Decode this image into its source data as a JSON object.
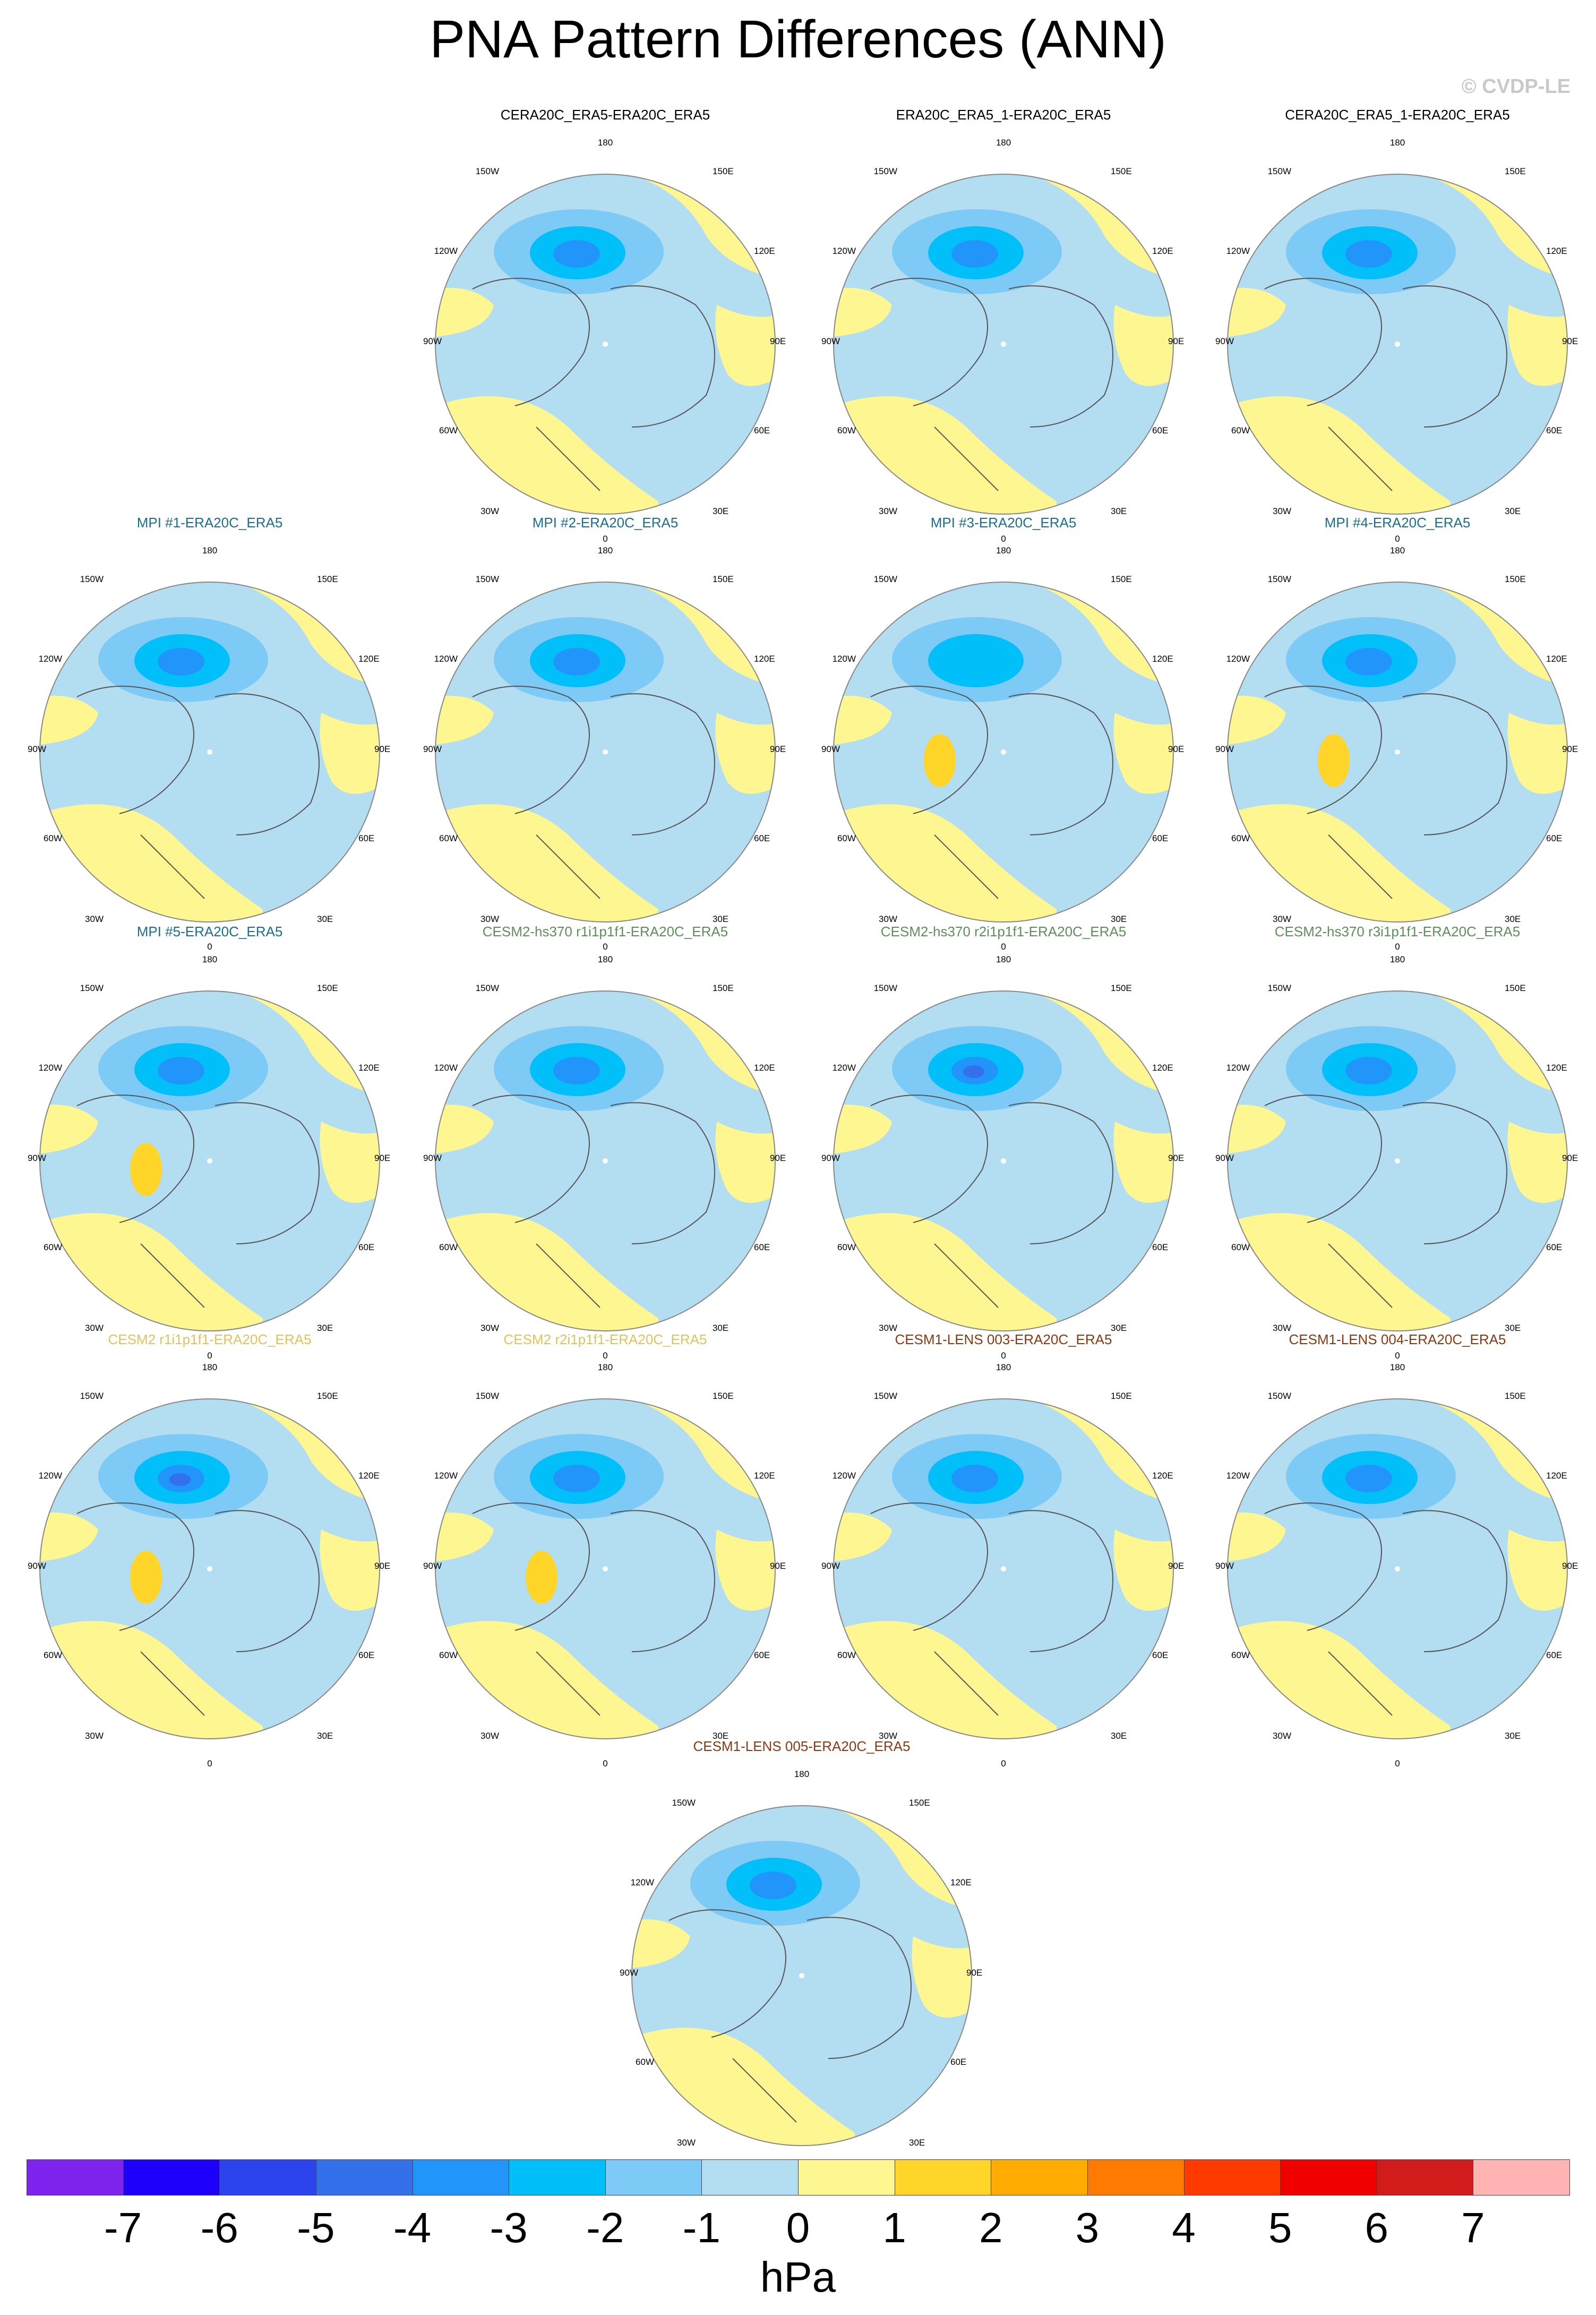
{
  "title": "PNA Pattern Differences (ANN)",
  "credit": "© CVDP-LE",
  "palette": {
    "neg7": "#7f24ee",
    "neg6": "#1c00fb",
    "neg5": "#2c44ee",
    "neg4": "#3370ea",
    "neg3": "#2295fb",
    "neg2": "#00bff9",
    "neg1": "#7ccaf5",
    "zero_neg": "#b3ddf1",
    "zero_pos": "#fef791",
    "pos1": "#ffd52a",
    "pos2": "#ffab00",
    "pos3": "#ff7a00",
    "pos4": "#ff3a00",
    "pos5": "#f00000",
    "pos6": "#d21c1c",
    "pos7": "#ffb3b3",
    "land_outline": "#555555"
  },
  "map_labels": {
    "lat180": "180",
    "lon150w": "150W",
    "lon150e": "150E",
    "lon120w": "120W",
    "lon120e": "120E",
    "lon90w": "90W",
    "lon90e": "90E",
    "lon60w": "60W",
    "lon60e": "60E",
    "lon30w": "30W",
    "lon30e": "30E",
    "lat0": "0"
  },
  "panels": [
    {
      "title": "CERA20C_ERA5-ERA20C_ERA5",
      "title_color": "#000000",
      "min_level": -3,
      "has_orange": false
    },
    {
      "title": "ERA20C_ERA5_1-ERA20C_ERA5",
      "title_color": "#000000",
      "min_level": -3,
      "has_orange": false
    },
    {
      "title": "CERA20C_ERA5_1-ERA20C_ERA5",
      "title_color": "#000000",
      "min_level": -3,
      "has_orange": false
    },
    {
      "title": "MPI #1-ERA20C_ERA5",
      "title_color": "#1b6f8a",
      "min_level": -3,
      "has_orange": false
    },
    {
      "title": "MPI #2-ERA20C_ERA5",
      "title_color": "#1b6f8a",
      "min_level": -3,
      "has_orange": false
    },
    {
      "title": "MPI #3-ERA20C_ERA5",
      "title_color": "#1b6f8a",
      "min_level": -2,
      "has_orange": true
    },
    {
      "title": "MPI #4-ERA20C_ERA5",
      "title_color": "#1b6f8a",
      "min_level": -3,
      "has_orange": true
    },
    {
      "title": "MPI #5-ERA20C_ERA5",
      "title_color": "#1b6f8a",
      "min_level": -3,
      "has_orange": true
    },
    {
      "title": "CESM2-hs370 r1i1p1f1-ERA20C_ERA5",
      "title_color": "#5f8f5a",
      "min_level": -3,
      "has_orange": false
    },
    {
      "title": "CESM2-hs370 r2i1p1f1-ERA20C_ERA5",
      "title_color": "#5f8f5a",
      "min_level": -4,
      "has_orange": false
    },
    {
      "title": "CESM2-hs370 r3i1p1f1-ERA20C_ERA5",
      "title_color": "#5f8f5a",
      "min_level": -3,
      "has_orange": false
    },
    {
      "title": "CESM2 r1i1p1f1-ERA20C_ERA5",
      "title_color": "#e0c35c",
      "min_level": -4,
      "has_orange": true
    },
    {
      "title": "CESM2 r2i1p1f1-ERA20C_ERA5",
      "title_color": "#e0c35c",
      "min_level": -3,
      "has_orange": true
    },
    {
      "title": "CESM1-LENS 003-ERA20C_ERA5",
      "title_color": "#8a3a12",
      "min_level": -3,
      "has_orange": false
    },
    {
      "title": "CESM1-LENS 004-ERA20C_ERA5",
      "title_color": "#8a3a12",
      "min_level": -3,
      "has_orange": false
    },
    {
      "title": "CESM1-LENS 005-ERA20C_ERA5",
      "title_color": "#8a3a12",
      "min_level": -3,
      "has_orange": false
    }
  ],
  "legend": {
    "colors": [
      "#7f24ee",
      "#1c00fb",
      "#2c44ee",
      "#3370ea",
      "#2295fb",
      "#00bff9",
      "#7ccaf5",
      "#b3ddf1",
      "#fef791",
      "#ffd52a",
      "#ffab00",
      "#ff7a00",
      "#ff3a00",
      "#f00000",
      "#d21c1c",
      "#ffb3b3"
    ],
    "ticks": [
      "-7",
      "-6",
      "-5",
      "-4",
      "-3",
      "-2",
      "-1",
      "0",
      "1",
      "2",
      "3",
      "4",
      "5",
      "6",
      "7"
    ],
    "units": "hPa"
  }
}
